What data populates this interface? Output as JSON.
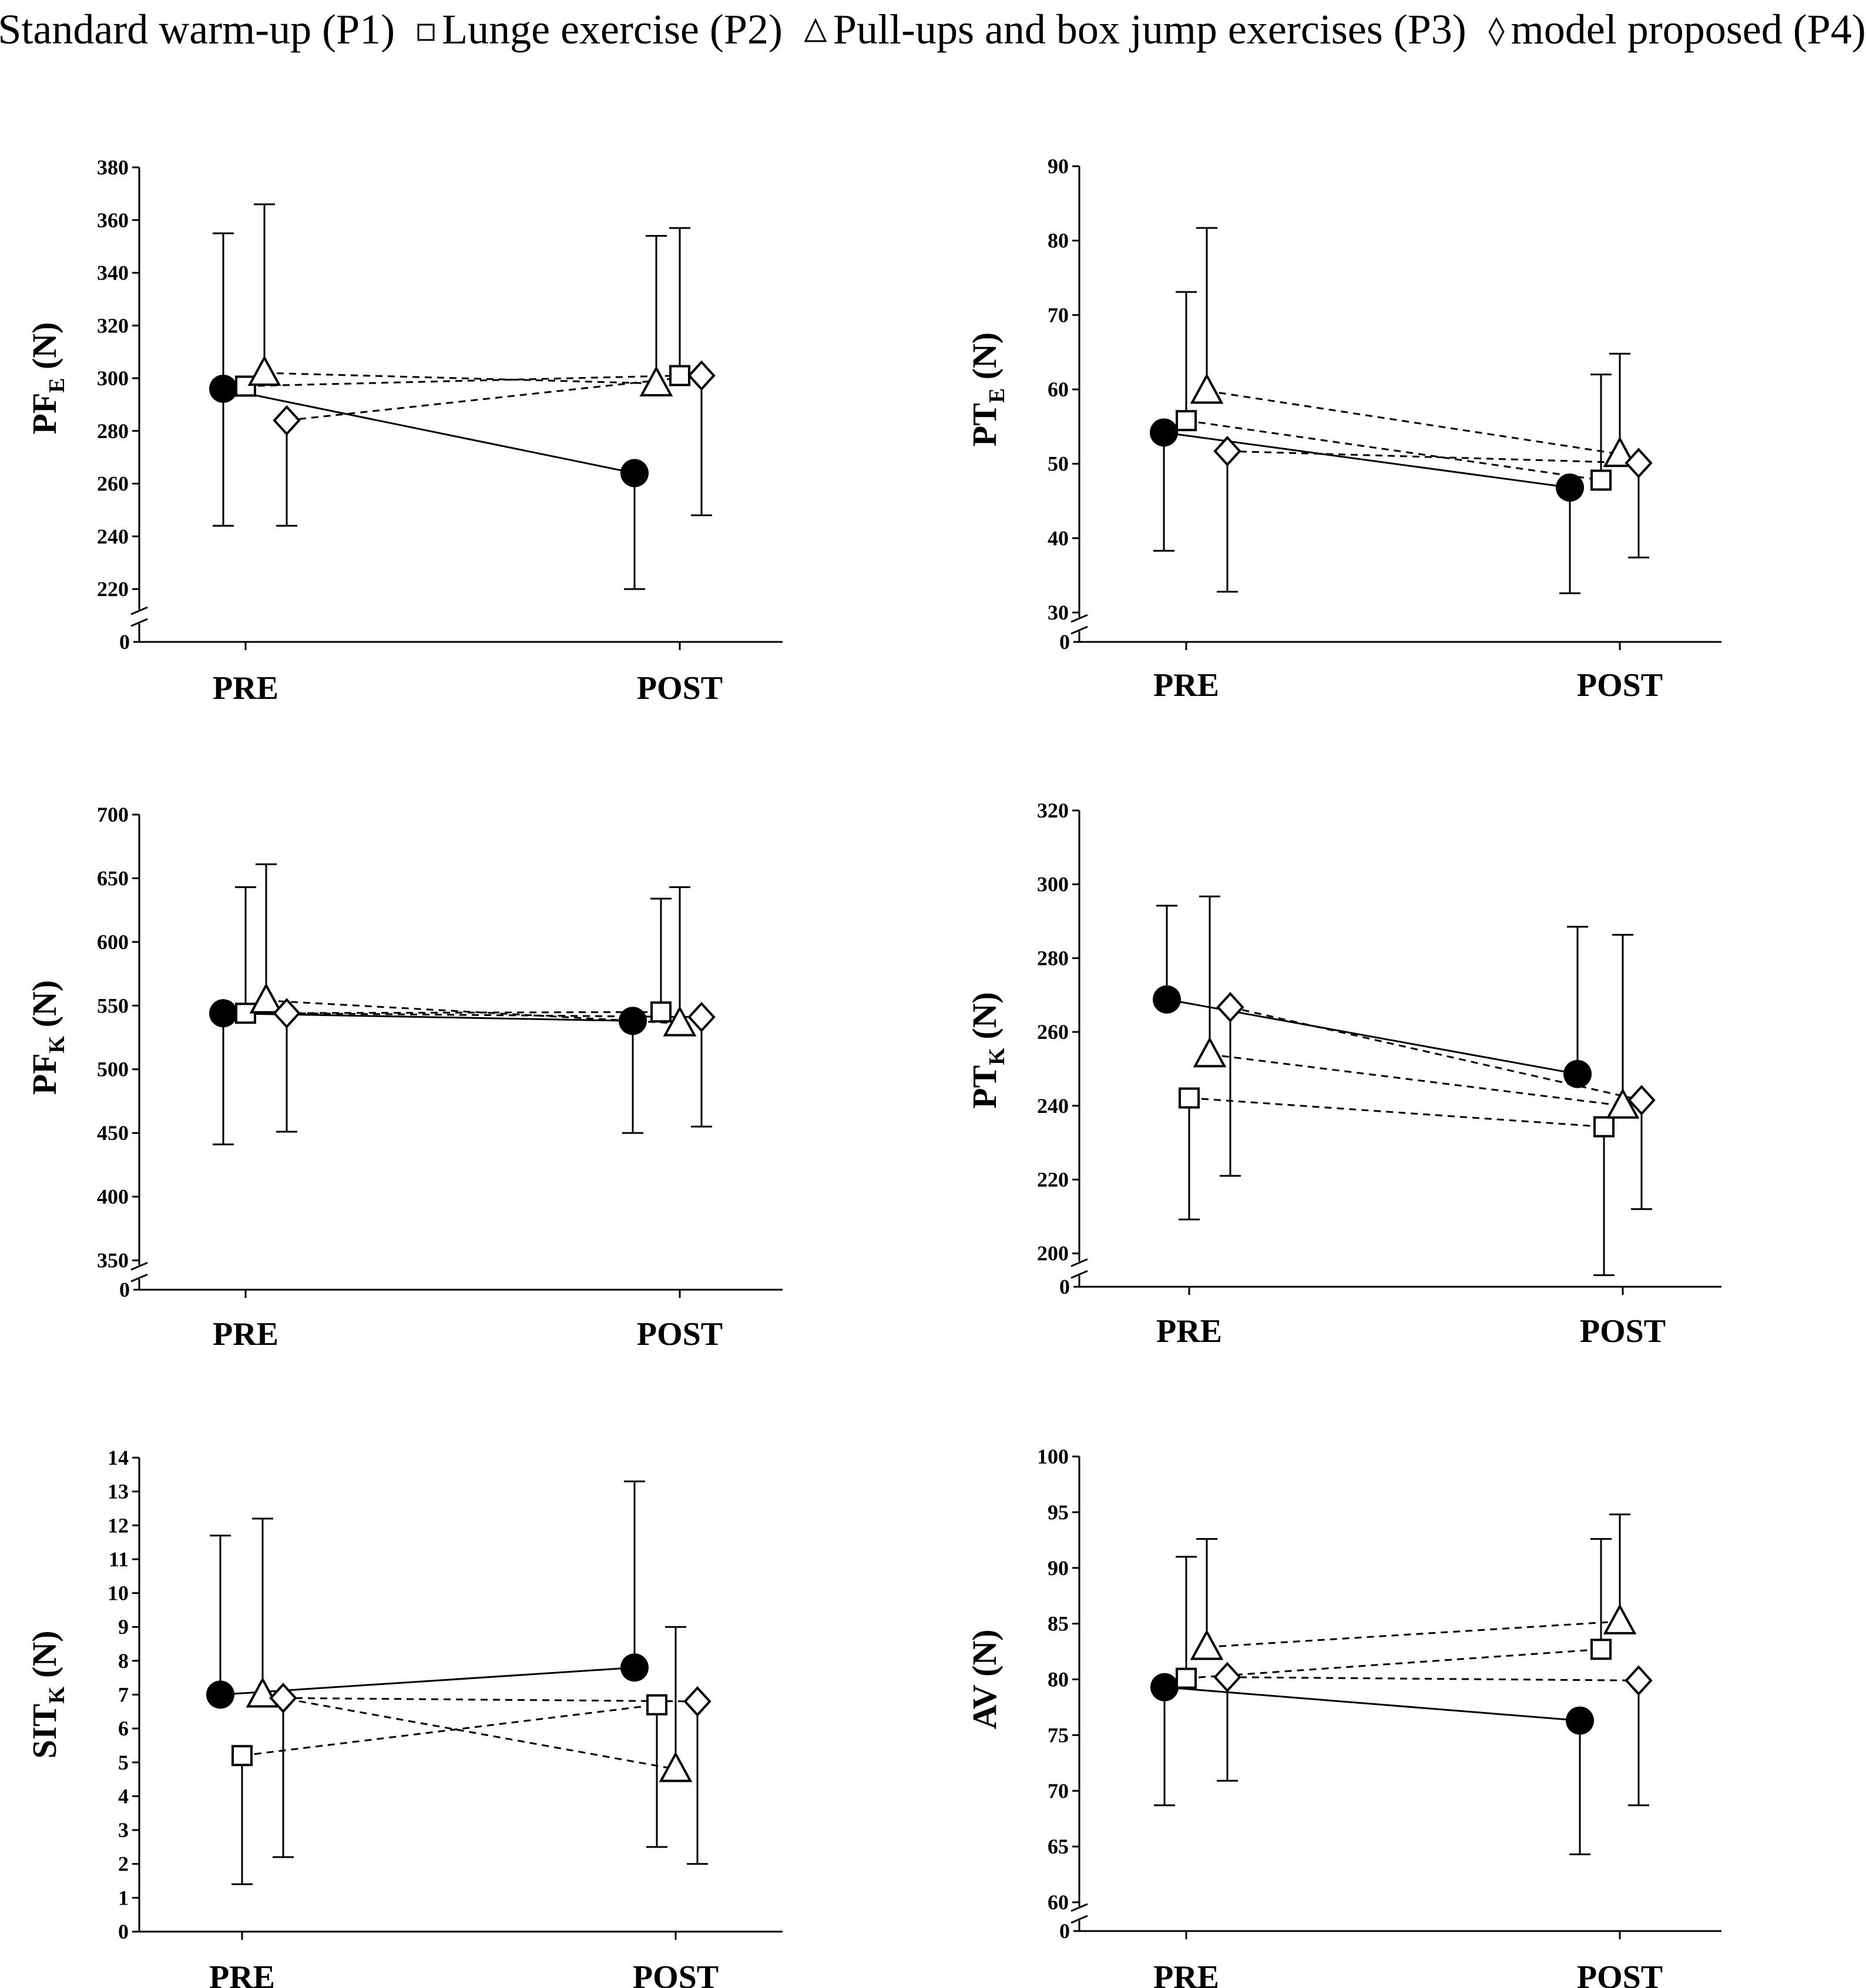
{
  "legend": {
    "p1": "Standard warm-up (P1)",
    "p2": "Lunge exercise (P2)",
    "p3": "Pull-ups and box jump exercises (P3)",
    "p4": "model proposed (P4)"
  },
  "chart_data": [
    {
      "type": "scatter",
      "title": "",
      "ylabel": "PF",
      "ylabel_sub": "E",
      "ylabel_unit": " (N)",
      "categories": [
        "PRE",
        "POST"
      ],
      "ylim": [
        220,
        380
      ],
      "yticks": [
        220,
        240,
        260,
        280,
        300,
        320,
        340,
        360,
        380
      ],
      "zero_label": "0",
      "series": [
        {
          "name": "Standard warm-up (P1)",
          "marker": "circle",
          "line": "solid",
          "values": [
            296,
            264
          ],
          "err_low": [
            244,
            220
          ],
          "err_high": [
            355,
            null
          ]
        },
        {
          "name": "Lunge exercise (P2)",
          "marker": "square",
          "line": "dashed",
          "values": [
            297,
            301
          ],
          "err_low": [
            null,
            null
          ],
          "err_high": [
            null,
            357
          ]
        },
        {
          "name": "Pull-ups and box jump exercises (P3)",
          "marker": "triangle",
          "line": "dashed",
          "values": [
            302,
            298
          ],
          "err_low": [
            null,
            null
          ],
          "err_high": [
            366,
            354
          ]
        },
        {
          "name": "model proposed (P4)",
          "marker": "diamond",
          "line": "dashed",
          "values": [
            284,
            301
          ],
          "err_low": [
            244,
            248
          ],
          "err_high": [
            null,
            null
          ]
        }
      ]
    },
    {
      "type": "scatter",
      "title": "",
      "ylabel": "PT",
      "ylabel_sub": "E",
      "ylabel_unit": " (N)",
      "categories": [
        "PRE",
        "POST"
      ],
      "ylim": [
        30,
        90
      ],
      "yticks": [
        30,
        40,
        50,
        60,
        70,
        80,
        90
      ],
      "zero_label": "0",
      "series": [
        {
          "name": "Standard warm-up (P1)",
          "marker": "circle",
          "line": "solid",
          "values": [
            54.2,
            46.8
          ],
          "err_low": [
            38.3,
            32.6
          ],
          "err_high": [
            null,
            null
          ]
        },
        {
          "name": "Lunge exercise (P2)",
          "marker": "square",
          "line": "dashed",
          "values": [
            55.8,
            47.8
          ],
          "err_low": [
            null,
            null
          ],
          "err_high": [
            73.1,
            62.0
          ]
        },
        {
          "name": "Pull-ups and box jump exercises (P3)",
          "marker": "triangle",
          "line": "dashed",
          "values": [
            59.8,
            51.3
          ],
          "err_low": [
            null,
            null
          ],
          "err_high": [
            81.7,
            64.8
          ]
        },
        {
          "name": "model proposed (P4)",
          "marker": "diamond",
          "line": "dashed",
          "values": [
            51.7,
            50.1
          ],
          "err_low": [
            32.8,
            37.4
          ],
          "err_high": [
            null,
            null
          ]
        }
      ]
    },
    {
      "type": "scatter",
      "title": "",
      "ylabel": "PF",
      "ylabel_sub": "K",
      "ylabel_unit": " (N)",
      "categories": [
        "PRE",
        "POST"
      ],
      "ylim": [
        350,
        700
      ],
      "yticks": [
        350,
        400,
        450,
        500,
        550,
        600,
        650,
        700
      ],
      "zero_label": "0",
      "series": [
        {
          "name": "Standard warm-up (P1)",
          "marker": "circle",
          "line": "solid",
          "values": [
            544,
            538
          ],
          "err_low": [
            441,
            450
          ],
          "err_high": [
            null,
            null
          ]
        },
        {
          "name": "Lunge exercise (P2)",
          "marker": "square",
          "line": "dashed",
          "values": [
            544,
            545
          ],
          "err_low": [
            null,
            null
          ],
          "err_high": [
            643,
            634
          ]
        },
        {
          "name": "Pull-ups and box jump exercises (P3)",
          "marker": "triangle",
          "line": "dashed",
          "values": [
            554,
            536
          ],
          "err_low": [
            null,
            null
          ],
          "err_high": [
            661,
            643
          ]
        },
        {
          "name": "model proposed (P4)",
          "marker": "diamond",
          "line": "dashed",
          "values": [
            544,
            541
          ],
          "err_low": [
            451,
            455
          ],
          "err_high": [
            null,
            null
          ]
        }
      ]
    },
    {
      "type": "scatter",
      "title": "",
      "ylabel": "PT",
      "ylabel_sub": "K",
      "ylabel_unit": " (N)",
      "categories": [
        "PRE",
        "POST"
      ],
      "ylim": [
        190,
        320
      ],
      "yticks": [
        200,
        220,
        240,
        260,
        280,
        300,
        320
      ],
      "zero_label": "0",
      "series": [
        {
          "name": "Standard warm-up (P1)",
          "marker": "circle",
          "line": "solid",
          "values": [
            268.8,
            248.6
          ],
          "err_low": [
            null,
            null
          ],
          "err_high": [
            294.2,
            288.5
          ]
        },
        {
          "name": "Lunge exercise (P2)",
          "marker": "square",
          "line": "dashed",
          "values": [
            242.1,
            234.3
          ],
          "err_low": [
            209.2,
            194.1
          ],
          "err_high": [
            null,
            null
          ]
        },
        {
          "name": "Pull-ups and box jump exercises (P3)",
          "marker": "triangle",
          "line": "dashed",
          "values": [
            253.9,
            240.0
          ],
          "err_low": [
            null,
            null
          ],
          "err_high": [
            296.7,
            286.3
          ]
        },
        {
          "name": "model proposed (P4)",
          "marker": "diamond",
          "line": "dashed",
          "values": [
            266.7,
            241.5
          ],
          "err_low": [
            221.0,
            212.0
          ],
          "err_high": [
            null,
            null
          ]
        }
      ]
    },
    {
      "type": "scatter",
      "title": "",
      "ylabel": "SIT",
      "ylabel_sub": "K",
      "ylabel_unit": " (N)",
      "categories": [
        "PRE",
        "POST"
      ],
      "ylim": [
        0,
        14
      ],
      "yticks": [
        0,
        1,
        2,
        3,
        4,
        5,
        6,
        7,
        8,
        9,
        10,
        11,
        12,
        13,
        14
      ],
      "zero_label": "",
      "series": [
        {
          "name": "Standard warm-up (P1)",
          "marker": "circle",
          "line": "solid",
          "values": [
            7.0,
            7.8
          ],
          "err_low": [
            null,
            null
          ],
          "err_high": [
            11.7,
            13.3
          ]
        },
        {
          "name": "Lunge exercise (P2)",
          "marker": "square",
          "line": "dashed",
          "values": [
            5.2,
            6.7
          ],
          "err_low": [
            1.4,
            2.5
          ],
          "err_high": [
            null,
            null
          ]
        },
        {
          "name": "Pull-ups and box jump exercises (P3)",
          "marker": "triangle",
          "line": "dashed",
          "values": [
            7.0,
            4.8
          ],
          "err_low": [
            null,
            null
          ],
          "err_high": [
            12.2,
            9.0
          ]
        },
        {
          "name": "model proposed (P4)",
          "marker": "diamond",
          "line": "dashed",
          "values": [
            6.9,
            6.8
          ],
          "err_low": [
            2.2,
            2.0
          ],
          "err_high": [
            null,
            null
          ]
        }
      ]
    },
    {
      "type": "scatter",
      "title": "",
      "ylabel": "AV",
      "ylabel_sub": "",
      "ylabel_unit": " (N)",
      "categories": [
        "PRE",
        "POST"
      ],
      "ylim": [
        60,
        100
      ],
      "yticks": [
        60,
        65,
        70,
        75,
        80,
        85,
        90,
        95,
        100
      ],
      "zero_label": "0",
      "series": [
        {
          "name": "Standard warm-up (P1)",
          "marker": "circle",
          "line": "solid",
          "values": [
            79.3,
            76.3
          ],
          "err_low": [
            68.7,
            64.3
          ],
          "err_high": [
            null,
            null
          ]
        },
        {
          "name": "Lunge exercise (P2)",
          "marker": "square",
          "line": "dashed",
          "values": [
            80.1,
            82.7
          ],
          "err_low": [
            null,
            null
          ],
          "err_high": [
            91.0,
            92.6
          ]
        },
        {
          "name": "Pull-ups and box jump exercises (P3)",
          "marker": "triangle",
          "line": "dashed",
          "values": [
            82.9,
            85.2
          ],
          "err_low": [
            null,
            null
          ],
          "err_high": [
            92.6,
            94.8
          ]
        },
        {
          "name": "model proposed (P4)",
          "marker": "diamond",
          "line": "dashed",
          "values": [
            80.2,
            79.9
          ],
          "err_low": [
            70.9,
            68.7
          ],
          "err_high": [
            null,
            null
          ]
        }
      ]
    }
  ]
}
